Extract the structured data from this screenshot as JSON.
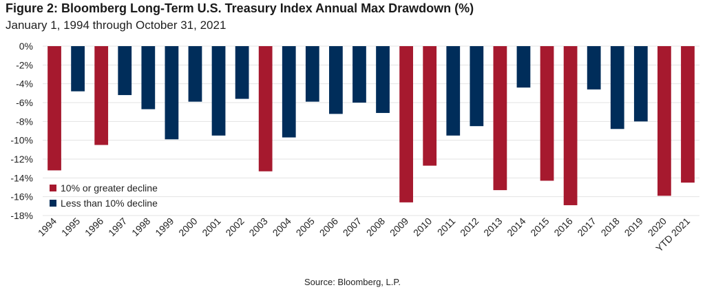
{
  "figure": {
    "title": "Figure 2: Bloomberg Long-Term U.S. Treasury Index Annual Max Drawdown (%)",
    "subtitle": "January 1, 1994 through October 31, 2021",
    "source": "Source: Bloomberg, L.P."
  },
  "colors": {
    "major": "#a6192e",
    "minor": "#002d5a",
    "grid": "#e3e3e3"
  },
  "chart_data": {
    "type": "bar",
    "title": "Figure 2: Bloomberg Long-Term U.S. Treasury Index Annual Max Drawdown (%)",
    "categories": [
      "1994",
      "1995",
      "1996",
      "1997",
      "1998",
      "1999",
      "2000",
      "2001",
      "2002",
      "2003",
      "2004",
      "2005",
      "2006",
      "2007",
      "2008",
      "2009",
      "2010",
      "2011",
      "2012",
      "2013",
      "2014",
      "2015",
      "2016",
      "2017",
      "2018",
      "2019",
      "2020",
      "YTD 2021"
    ],
    "values": [
      -13.2,
      -4.8,
      -10.5,
      -5.2,
      -6.7,
      -9.9,
      -5.9,
      -9.5,
      -5.6,
      -13.3,
      -9.7,
      -5.9,
      -7.2,
      -6.0,
      -7.1,
      -16.6,
      -12.7,
      -9.5,
      -8.5,
      -15.3,
      -4.4,
      -14.3,
      -16.9,
      -4.6,
      -8.8,
      -8.0,
      -15.9,
      -14.5
    ],
    "ylim": [
      -18,
      0
    ],
    "yticks": [
      0,
      -2,
      -4,
      -6,
      -8,
      -10,
      -12,
      -14,
      -16,
      -18
    ],
    "ytick_suffix": "%",
    "legend": [
      {
        "label": "10% or greater decline",
        "color": "#a6192e"
      },
      {
        "label": "Less than 10% decline",
        "color": "#002d5a"
      }
    ],
    "legend_position": "bottom-left",
    "grid": true
  }
}
